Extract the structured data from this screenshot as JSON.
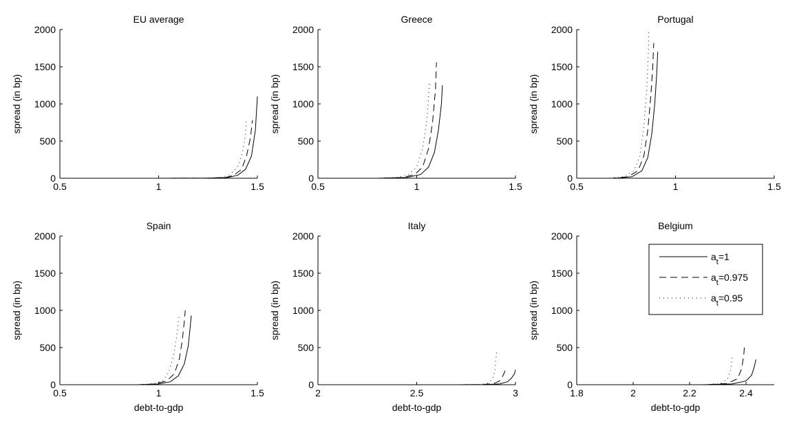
{
  "figure": {
    "ylabel": "spread (in bp)",
    "xlabel": "debt-to-gdp"
  },
  "legend": {
    "entries": [
      {
        "base": "a",
        "sub": "t",
        "rest": "=1",
        "style": "solid"
      },
      {
        "base": "a",
        "sub": "t",
        "rest": "=0.975",
        "style": "dashed"
      },
      {
        "base": "a",
        "sub": "t",
        "rest": "=0.95",
        "style": "dotted"
      }
    ]
  },
  "chart_data": [
    {
      "type": "line",
      "title": "EU average",
      "xlabel": "",
      "ylabel": "spread (in bp)",
      "xlim": [
        0.5,
        1.5
      ],
      "ylim": [
        0,
        2000
      ],
      "xticks": [
        "0.5",
        "1",
        "1.5"
      ],
      "yticks": [
        "0",
        "500",
        "1000",
        "1500",
        "2000"
      ],
      "series": [
        {
          "name": "a_t=1",
          "style": "solid",
          "x": [
            0.5,
            1.0,
            1.25,
            1.35,
            1.4,
            1.44,
            1.47,
            1.49,
            1.5
          ],
          "y": [
            0,
            0,
            2,
            10,
            40,
            120,
            300,
            650,
            1100
          ]
        },
        {
          "name": "a_t=0.975",
          "style": "dashed",
          "x": [
            0.5,
            1.0,
            1.25,
            1.34,
            1.38,
            1.42,
            1.445,
            1.465,
            1.475
          ],
          "y": [
            0,
            0,
            2,
            10,
            40,
            120,
            300,
            550,
            780
          ]
        },
        {
          "name": "a_t=0.95",
          "style": "dotted",
          "x": [
            0.5,
            1.0,
            1.25,
            1.32,
            1.36,
            1.4,
            1.425,
            1.44,
            1.445
          ],
          "y": [
            0,
            0,
            2,
            10,
            50,
            150,
            350,
            600,
            800
          ]
        }
      ]
    },
    {
      "type": "line",
      "title": "Greece",
      "xlabel": "",
      "ylabel": "spread (in bp)",
      "xlim": [
        0.5,
        1.5
      ],
      "ylim": [
        0,
        2000
      ],
      "xticks": [
        "0.5",
        "1",
        "1.5"
      ],
      "yticks": [
        "0",
        "500",
        "1000",
        "1500",
        "2000"
      ],
      "series": [
        {
          "name": "a_t=1",
          "style": "solid",
          "x": [
            0.5,
            0.8,
            0.95,
            1.02,
            1.06,
            1.09,
            1.11,
            1.125,
            1.13
          ],
          "y": [
            0,
            0,
            10,
            50,
            150,
            350,
            650,
            1000,
            1250
          ]
        },
        {
          "name": "a_t=0.975",
          "style": "dashed",
          "x": [
            0.5,
            0.8,
            0.93,
            0.99,
            1.03,
            1.06,
            1.08,
            1.095,
            1.1
          ],
          "y": [
            0,
            0,
            10,
            50,
            150,
            400,
            750,
            1200,
            1560
          ]
        },
        {
          "name": "a_t=0.95",
          "style": "dotted",
          "x": [
            0.5,
            0.8,
            0.9,
            0.96,
            1.0,
            1.03,
            1.05,
            1.06,
            1.065
          ],
          "y": [
            0,
            0,
            10,
            50,
            150,
            400,
            750,
            1100,
            1300
          ]
        }
      ]
    },
    {
      "type": "line",
      "title": "Portugal",
      "xlabel": "",
      "ylabel": "spread (in bp)",
      "xlim": [
        0.5,
        1.5
      ],
      "ylim": [
        0,
        2000
      ],
      "xticks": [
        "0.5",
        "1",
        "1.5"
      ],
      "yticks": [
        "0",
        "500",
        "1000",
        "1500",
        "2000"
      ],
      "series": [
        {
          "name": "a_t=1",
          "style": "solid",
          "x": [
            0.5,
            0.7,
            0.78,
            0.83,
            0.86,
            0.88,
            0.895,
            0.905,
            0.91
          ],
          "y": [
            0,
            0,
            20,
            100,
            280,
            600,
            1000,
            1400,
            1700
          ]
        },
        {
          "name": "a_t=0.975",
          "style": "dashed",
          "x": [
            0.5,
            0.68,
            0.76,
            0.81,
            0.84,
            0.86,
            0.875,
            0.885,
            0.89
          ],
          "y": [
            0,
            0,
            20,
            100,
            300,
            650,
            1100,
            1500,
            1820
          ]
        },
        {
          "name": "a_t=0.95",
          "style": "dotted",
          "x": [
            0.5,
            0.66,
            0.74,
            0.79,
            0.82,
            0.84,
            0.855,
            0.862,
            0.865
          ],
          "y": [
            0,
            0,
            20,
            100,
            300,
            700,
            1200,
            1650,
            2000
          ]
        }
      ]
    },
    {
      "type": "line",
      "title": "Spain",
      "xlabel": "debt-to-gdp",
      "ylabel": "spread (in bp)",
      "xlim": [
        0.5,
        1.5
      ],
      "ylim": [
        0,
        2000
      ],
      "xticks": [
        "0.5",
        "1",
        "1.5"
      ],
      "yticks": [
        "0",
        "500",
        "1000",
        "1500",
        "2000"
      ],
      "series": [
        {
          "name": "a_t=1",
          "style": "solid",
          "x": [
            0.5,
            0.9,
            1.0,
            1.06,
            1.1,
            1.13,
            1.15,
            1.16,
            1.165
          ],
          "y": [
            0,
            0,
            10,
            40,
            120,
            280,
            520,
            780,
            930
          ]
        },
        {
          "name": "a_t=0.975",
          "style": "dashed",
          "x": [
            0.5,
            0.9,
            0.98,
            1.04,
            1.08,
            1.105,
            1.12,
            1.13,
            1.135
          ],
          "y": [
            0,
            0,
            10,
            50,
            150,
            350,
            600,
            850,
            1000
          ]
        },
        {
          "name": "a_t=0.95",
          "style": "dotted",
          "x": [
            0.5,
            0.88,
            0.96,
            1.02,
            1.05,
            1.075,
            1.09,
            1.1,
            1.105
          ],
          "y": [
            0,
            0,
            10,
            50,
            160,
            380,
            620,
            850,
            950
          ]
        }
      ]
    },
    {
      "type": "line",
      "title": "Italy",
      "xlabel": "debt-to-gdp",
      "ylabel": "spread (in bp)",
      "xlim": [
        2,
        3
      ],
      "ylim": [
        0,
        2000
      ],
      "xticks": [
        "2",
        "2.5",
        "3"
      ],
      "yticks": [
        "0",
        "500",
        "1000",
        "1500",
        "2000"
      ],
      "series": [
        {
          "name": "a_t=1",
          "style": "solid",
          "x": [
            2.0,
            2.7,
            2.85,
            2.92,
            2.96,
            2.98,
            2.995,
            3.0
          ],
          "y": [
            0,
            0,
            2,
            10,
            40,
            90,
            150,
            200
          ]
        },
        {
          "name": "a_t=0.975",
          "style": "dashed",
          "x": [
            2.0,
            2.7,
            2.83,
            2.89,
            2.92,
            2.935,
            2.945,
            2.95
          ],
          "y": [
            0,
            0,
            2,
            15,
            50,
            110,
            170,
            220
          ]
        },
        {
          "name": "a_t=0.95",
          "style": "dotted",
          "x": [
            2.0,
            2.7,
            2.82,
            2.86,
            2.885,
            2.895,
            2.9,
            2.905
          ],
          "y": [
            0,
            0,
            2,
            20,
            80,
            180,
            320,
            450
          ]
        }
      ]
    },
    {
      "type": "line",
      "title": "Belgium",
      "xlabel": "debt-to-gdp",
      "ylabel": "spread (in bp)",
      "xlim": [
        1.8,
        2.5
      ],
      "ylim": [
        0,
        2000
      ],
      "xticks": [
        "1.8",
        "2",
        "2.2",
        "2.4"
      ],
      "yticks": [
        "0",
        "500",
        "1000",
        "1500",
        "2000"
      ],
      "series": [
        {
          "name": "a_t=1",
          "style": "solid",
          "x": [
            1.8,
            2.25,
            2.35,
            2.4,
            2.42,
            2.43,
            2.435
          ],
          "y": [
            0,
            0,
            10,
            50,
            130,
            250,
            340
          ]
        },
        {
          "name": "a_t=0.975",
          "style": "dashed",
          "x": [
            1.8,
            2.25,
            2.33,
            2.37,
            2.385,
            2.392,
            2.395
          ],
          "y": [
            0,
            0,
            15,
            80,
            220,
            400,
            550
          ]
        },
        {
          "name": "a_t=0.95",
          "style": "dotted",
          "x": [
            1.8,
            2.25,
            2.31,
            2.335,
            2.345,
            2.35,
            2.352
          ],
          "y": [
            0,
            0,
            15,
            80,
            200,
            320,
            400
          ]
        }
      ]
    }
  ]
}
